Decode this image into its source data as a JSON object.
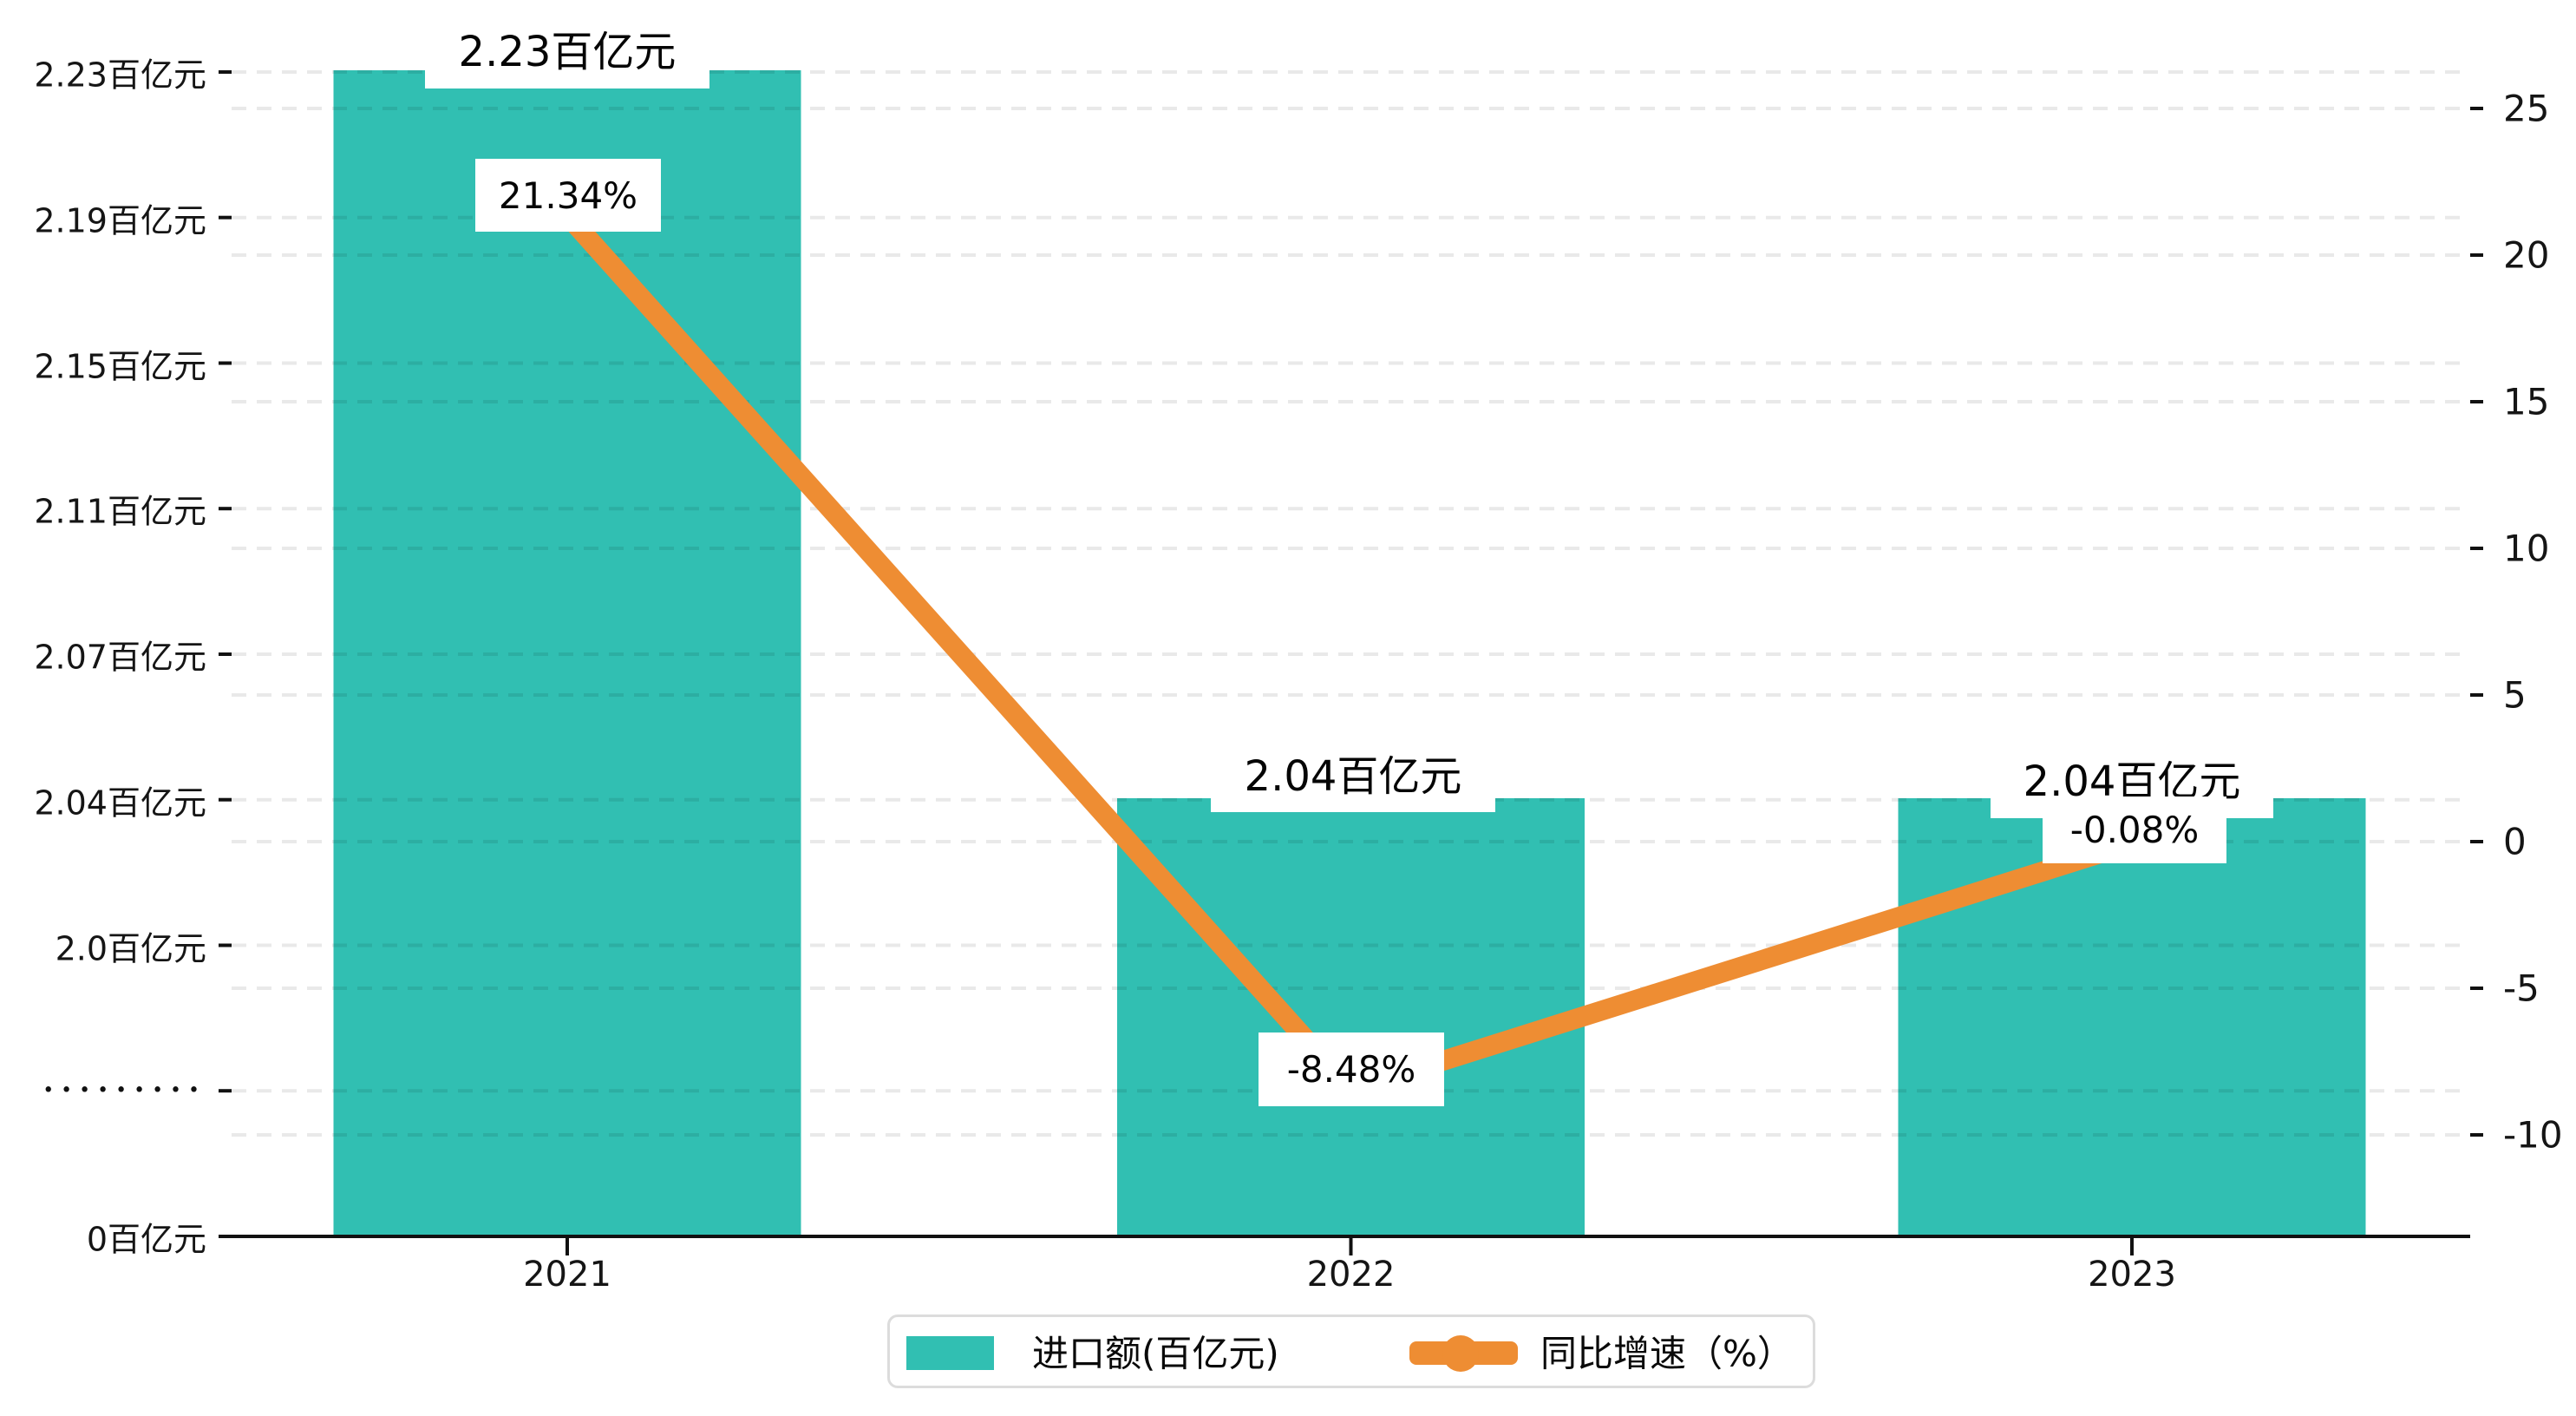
{
  "chart_data": {
    "type": "bar+line dual-axis",
    "categories": [
      "2021",
      "2022",
      "2023"
    ],
    "series": [
      {
        "name": "进口额(百亿元)",
        "type": "bar",
        "axis": "left",
        "color": "#31BFB2",
        "values": [
          2.23,
          2.04,
          2.04
        ],
        "value_labels": [
          "2.23百亿元",
          "2.04百亿元",
          "2.04百亿元"
        ]
      },
      {
        "name": "同比增速（%）",
        "type": "line",
        "axis": "right",
        "color": "#EE8D33",
        "values": [
          21.34,
          -8.48,
          -0.08
        ],
        "value_labels": [
          "21.34%",
          "-8.48%",
          "-0.08%"
        ]
      }
    ],
    "left_axis": {
      "unit": "百亿元",
      "broken_axis": true,
      "tick_labels": [
        "2.23百亿元",
        "2.19百亿元",
        "2.15百亿元",
        "2.11百亿元",
        "2.07百亿元",
        "2.04百亿元",
        "2.0百亿元",
        "•••••••••",
        "0百亿元"
      ]
    },
    "right_axis": {
      "range": [
        -10,
        25
      ],
      "tick_labels": [
        "25",
        "20",
        "15",
        "10",
        "5",
        "0",
        "-5",
        "-10"
      ]
    },
    "grid": "dashed horizontal",
    "legend_position": "bottom-center"
  },
  "legend": {
    "items": [
      {
        "label": "进口额(百亿元)",
        "marker": "bar-swatch"
      },
      {
        "label": "同比增速（%）",
        "marker": "line-dot"
      }
    ]
  },
  "colors": {
    "bar": "#31BFB2",
    "line": "#EE8D33",
    "axis": "#111111",
    "grid": "rgba(0,0,0,0.085)",
    "label_bg": "#ffffff",
    "text": "#000000",
    "legend_border": "#dcdcdc"
  }
}
